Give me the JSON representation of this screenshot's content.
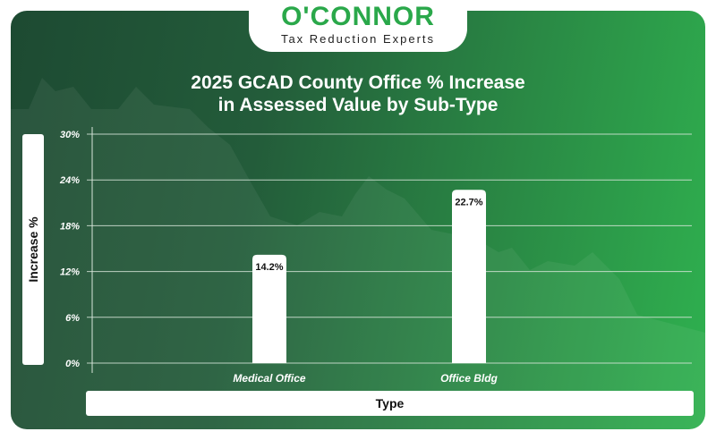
{
  "logo": {
    "name": "O'CONNOR",
    "tagline": "Tax Reduction Experts"
  },
  "colors": {
    "accent": "#2aa84a",
    "bar": "#ffffff",
    "grid": "#d8e6da"
  },
  "chart_data": {
    "type": "bar",
    "title": "2025 GCAD County Office % Increase in Assessed Value by Sub-Type",
    "title_lines": [
      "2025 GCAD County Office % Increase",
      "in Assessed Value by Sub-Type"
    ],
    "xlabel": "Type",
    "ylabel": "Increase %",
    "categories": [
      "Medical Office",
      "Office Bldg"
    ],
    "values": [
      14.2,
      22.7
    ],
    "data_labels": [
      "14.2%",
      "22.7%"
    ],
    "ylim": [
      0,
      30
    ],
    "yticks": [
      0,
      6,
      12,
      18,
      24,
      30
    ],
    "ytick_labels": [
      "0%",
      "6%",
      "12%",
      "18%",
      "24%",
      "30%"
    ],
    "grid": true
  }
}
